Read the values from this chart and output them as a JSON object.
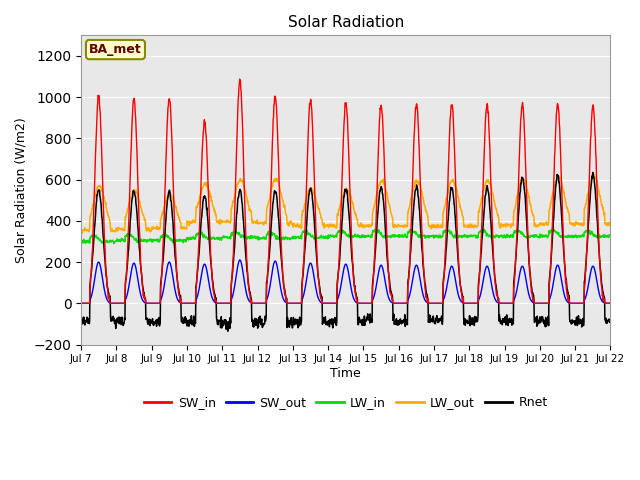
{
  "title": "Solar Radiation",
  "ylabel": "Solar Radiation (W/m2)",
  "xlabel": "Time",
  "ylim": [
    -200,
    1300
  ],
  "yticks": [
    -200,
    0,
    200,
    400,
    600,
    800,
    1000,
    1200
  ],
  "plot_bg_color": "#e8e8e8",
  "label_box_text": "BA_met",
  "legend_entries": [
    "SW_in",
    "SW_out",
    "LW_in",
    "LW_out",
    "Rnet"
  ],
  "line_colors": {
    "SW_in": "#ff0000",
    "SW_out": "#0000ff",
    "LW_in": "#00dd00",
    "LW_out": "#ffaa00",
    "Rnet": "#000000"
  },
  "n_days": 15,
  "tick_labels": [
    "Jul 7",
    "Jul 8",
    "Jul 9",
    "Jul 10",
    "Jul 11",
    "Jul 12",
    "Jul 13",
    "Jul 14",
    "Jul 15",
    "Jul 16",
    "Jul 17",
    "Jul 18",
    "Jul 19",
    "Jul 20",
    "Jul 21",
    "Jul 22"
  ],
  "day_peaks_SW": [
    1000,
    990,
    1000,
    880,
    1080,
    1005,
    985,
    975,
    960,
    965,
    965,
    965,
    965,
    965,
    960
  ],
  "day_peaks_SW_out": [
    200,
    195,
    200,
    190,
    210,
    205,
    195,
    190,
    185,
    185,
    180,
    180,
    180,
    185,
    180
  ],
  "LW_base": [
    300,
    305,
    305,
    315,
    320,
    315,
    320,
    325,
    325,
    325,
    325,
    325,
    325,
    325,
    325
  ],
  "LW_out_base": [
    355,
    360,
    365,
    395,
    395,
    388,
    375,
    375,
    375,
    375,
    375,
    375,
    380,
    385,
    385
  ],
  "LW_out_peaks": [
    570,
    545,
    525,
    580,
    600,
    605,
    555,
    555,
    595,
    595,
    595,
    595,
    600,
    610,
    620
  ],
  "Rnet_peaks": [
    550,
    545,
    540,
    520,
    545,
    545,
    555,
    555,
    565,
    565,
    560,
    560,
    610,
    620,
    625
  ],
  "Rnet_night": [
    -85,
    -85,
    -90,
    -90,
    -95,
    -95,
    -90,
    -90,
    -85,
    -85,
    -85,
    -85,
    -85,
    -85,
    -85
  ]
}
